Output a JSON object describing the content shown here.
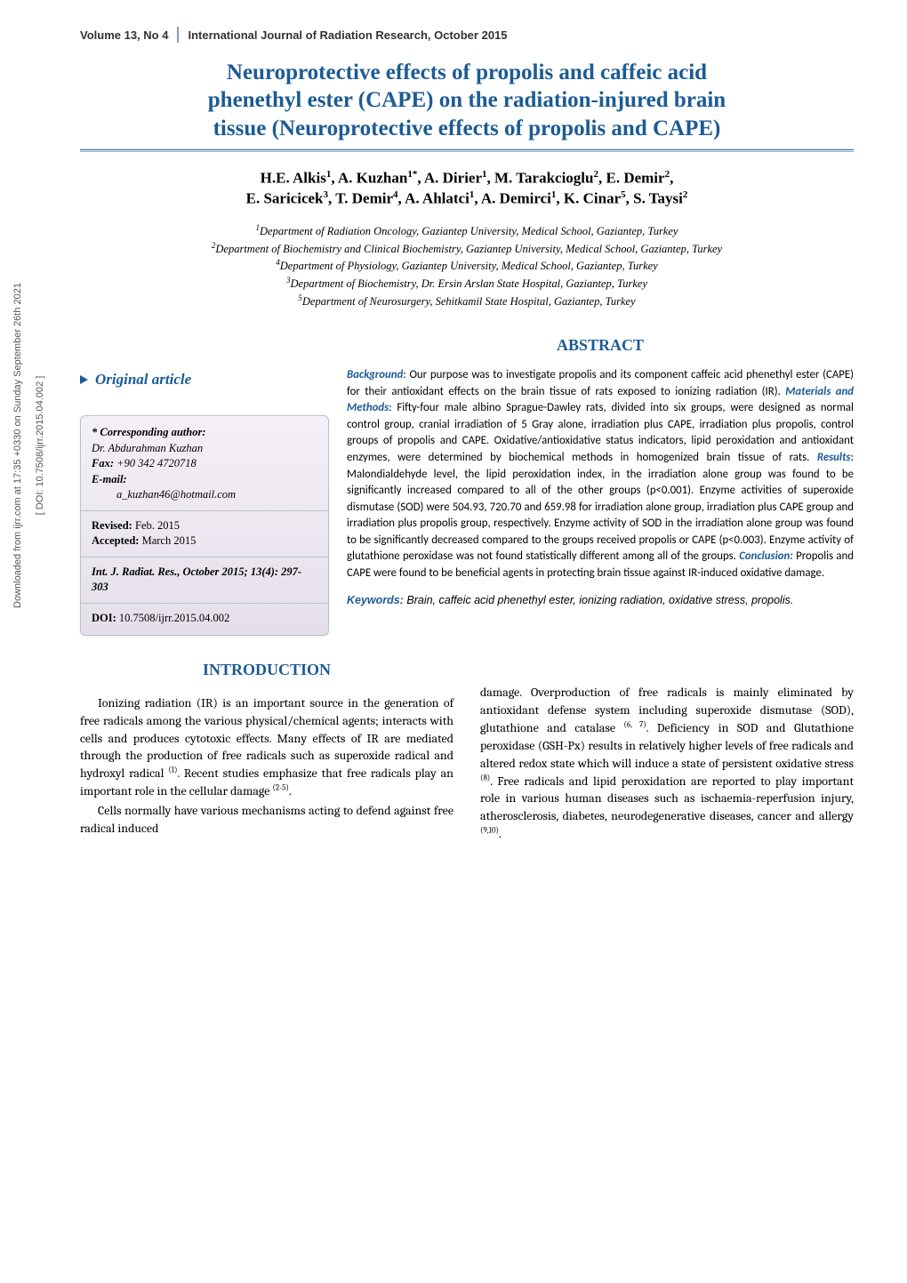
{
  "side": {
    "line1": "Downloaded from ijrr.com at 17:35 +0330 on Sunday September 26th 2021",
    "line2": "[ DOI: 10.7508/ijrr.2015.04.002 ]"
  },
  "header": {
    "volume": "Volume 13, No 4",
    "journal": "International Journal of Radiation Research, October 2015"
  },
  "title": {
    "line1": "Neuroprotective effects of propolis and caffeic acid",
    "line2": "phenethyl ester (CAPE) on the radiation-injured brain",
    "line3": "tissue (Neuroprotective effects of propolis and CAPE)"
  },
  "authors_html": "H.E. Alkis<sup>1</sup>, A. Kuzhan<sup>1*</sup>, A. Dirier<sup>1</sup>, M. Tarakcioglu<sup>2</sup>, E. Demir<sup>2</sup>,<br>E. Saricicek<sup>3</sup>, T. Demir<sup>4</sup>, A. Ahlatci<sup>1</sup>, A. Demirci<sup>1</sup>, K. Cinar<sup>5</sup>, S. Taysi<sup>2</sup>",
  "affiliations": [
    "<sup>1</sup>Department of Radiation Oncology, Gaziantep University, Medical School, Gaziantep, Turkey",
    "<sup>2</sup>Department of Biochemistry and Clinical Biochemistry, Gaziantep University, Medical School, Gaziantep, Turkey",
    "<sup>4</sup>Department of Physiology, Gaziantep University, Medical School, Gaziantep, Turkey",
    "<sup>3</sup>Department of Biochemistry, Dr. Ersin Arslan State Hospital, Gaziantep, Turkey",
    "<sup>5</sup>Department of Neurosurgery, Sehitkamil State Hospital, Gaziantep, Turkey"
  ],
  "headings": {
    "abstract": "ABSTRACT",
    "original_article": "Original article",
    "introduction": "INTRODUCTION"
  },
  "card": {
    "corr_label": "* Corresponding author:",
    "corr_name": "Dr. Abdurahman Kuzhan",
    "fax_label": "Fax:",
    "fax_val": "+90 342 4720718",
    "email_label": "E-mail:",
    "email_val": "a_kuzhan46@hotmail.com",
    "revised_label": "Revised:",
    "revised_val": "Feb. 2015",
    "accepted_label": "Accepted:",
    "accepted_val": "March 2015",
    "citation": "Int. J. Radiat. Res., October 2015; 13(4): 297-303",
    "doi_label": "DOI:",
    "doi_val": "10.7508/ijrr.2015.04.002"
  },
  "abstract": {
    "bg_label": "Background",
    "bg_text": ": Our purpose was to investigate propolis and its component caffeic acid phenethyl ester (CAPE) for their antioxidant effects on the brain tissue of rats exposed to ionizing radiation (IR). ",
    "mm_label": "Materials and Methods",
    "mm_text": ": Fifty-four male albino Sprague-Dawley rats, divided into six groups, were designed as normal control group, cranial irradiation of 5 Gray alone, irradiation plus CAPE, irradiation plus propolis, control groups of propolis and CAPE. Oxidative/antioxidative status indicators, lipid peroxidation and antioxidant enzymes, were determined by biochemical methods in homogenized brain tissue of rats. ",
    "res_label": "Results",
    "res_text": ": Malondialdehyde level, the lipid peroxidation index, in the irradiation alone group was found to be significantly increased compared to all of the other groups (p<0.001). Enzyme activities of superoxide dismutase (SOD) were 504.93, 720.70 and 659.98 for irradiation alone group, irradiation plus CAPE group and irradiation plus propolis group, respectively. Enzyme activity of SOD in the irradiation alone group was found to be significantly decreased compared to the groups received propolis or CAPE (p<0.003). Enzyme activity of glutathione peroxidase was not found statistically different among all of the groups. ",
    "con_label": "Conclusion:",
    "con_text": " Propolis and CAPE were found to be beneficial agents in protecting brain tissue against IR-induced oxidative damage."
  },
  "keywords": {
    "label": "Keywords:",
    "text": " Brain, caffeic acid phenethyl ester, ionizing radiation, oxidative stress, propolis."
  },
  "intro": {
    "left_html": "<p>Ionizing radiation (IR) is an important source in the generation of free radicals among the various physical/chemical agents; interacts with cells and produces cytotoxic effects. Many effects of IR are mediated through the production of free radicals such as superoxide radical and hydroxyl radical <sup>(1)</sup>. Recent studies emphasize that free radicals play an important role in the cellular damage <sup>(2-5)</sup>.</p><p>Cells normally have various mechanisms acting to defend against free radical induced</p>",
    "right_html": "<p style='text-indent:0'>damage. Overproduction of free radicals is mainly eliminated by antioxidant defense system including superoxide dismutase (SOD), glutathione and catalase <sup>(6, 7)</sup>. Deficiency in SOD and Glutathione peroxidase (GSH-Px) results in relatively higher levels of free radicals and altered redox state which will induce a state of persistent oxidative stress <sup>(8)</sup>. Free radicals and lipid peroxidation are reported to play important role in various human diseases such as ischaemia-reperfusion injury, atherosclerosis, diabetes, neurodegenerative diseases, cancer and allergy <sup>(9,10)</sup>.</p>"
  },
  "colors": {
    "accent": "#1c5b94",
    "text": "#000000",
    "side_text": "#555555",
    "card_bg_top": "#f5f0f7",
    "card_bg_bottom": "#e4dfe9",
    "card_border": "#b8c2cc"
  }
}
